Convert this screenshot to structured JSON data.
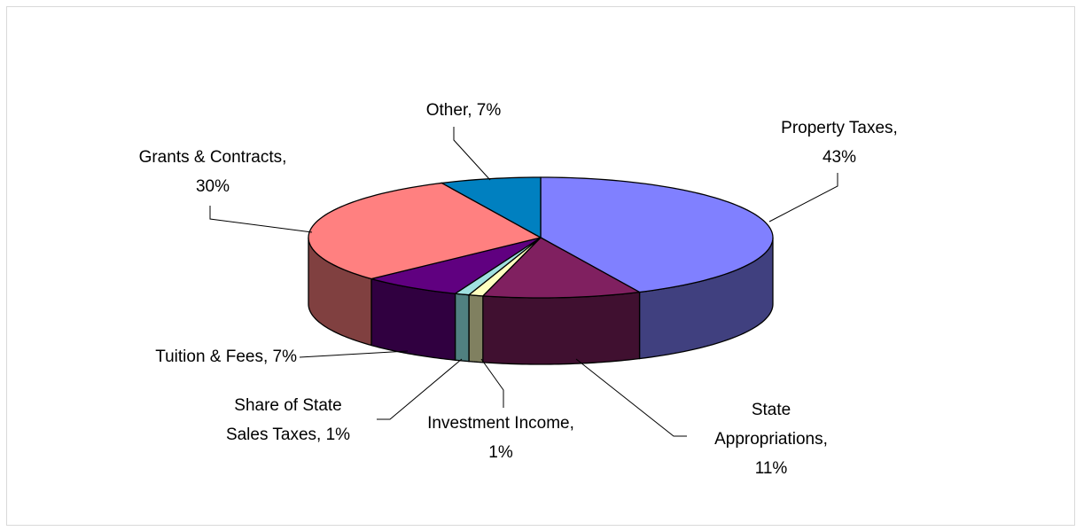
{
  "chart_data": {
    "type": "pie3d",
    "values": [
      43,
      11,
      1,
      1,
      7,
      30,
      7
    ],
    "value_labels": [
      [
        "Property Taxes,",
        "43%"
      ],
      [
        "State",
        "Appropriations,",
        "11%"
      ],
      [
        "Investment Income,",
        "1%"
      ],
      [
        "Share of State",
        "Sales Taxes, 1%"
      ],
      [
        "Tuition & Fees, 7%"
      ],
      [
        "Grants & Contracts,",
        "30%"
      ],
      [
        "Other, 7%"
      ]
    ],
    "colors": [
      "#8080ff",
      "#802060",
      "#ffffc0",
      "#a0e0e0",
      "#600080",
      "#ff8080",
      "#0080c0"
    ],
    "side_colors": [
      "#40407f",
      "#401030",
      "#808060",
      "#508080",
      "#300040",
      "#804040",
      "#004060"
    ]
  }
}
